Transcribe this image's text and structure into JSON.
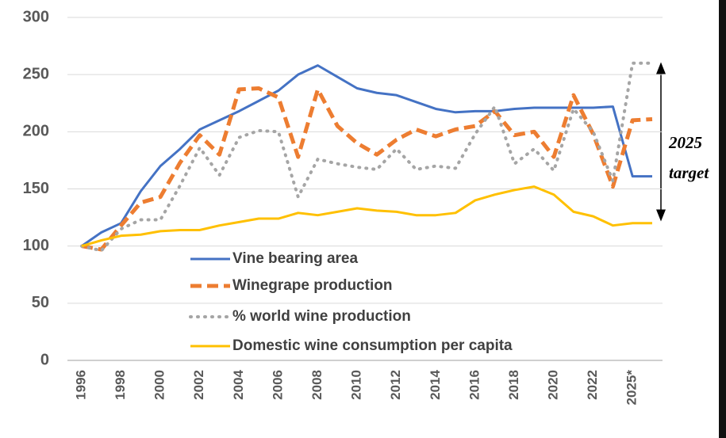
{
  "chart_data": {
    "type": "line",
    "categories": [
      "1996",
      null,
      "1998",
      null,
      "2000",
      null,
      "2002",
      null,
      "2004",
      null,
      "2006",
      null,
      "2008",
      null,
      "2010",
      null,
      "2012",
      null,
      "2014",
      null,
      "2016",
      null,
      "2018",
      null,
      "2020",
      null,
      "2022",
      null,
      "2025*",
      null
    ],
    "series": [
      {
        "name": "Vine bearing area",
        "color": "#4472c4",
        "style": "solid",
        "values": [
          100,
          112,
          120,
          148,
          170,
          185,
          202,
          210,
          218,
          227,
          236,
          250,
          258,
          248,
          238,
          234,
          232,
          226,
          220,
          217,
          218,
          218,
          220,
          221,
          221,
          221,
          221,
          222,
          161,
          161
        ]
      },
      {
        "name": "Winegrape production",
        "color": "#ed7d31",
        "style": "dashed",
        "values": [
          100,
          97,
          118,
          138,
          143,
          173,
          197,
          180,
          237,
          238,
          230,
          178,
          237,
          205,
          190,
          180,
          193,
          202,
          196,
          202,
          205,
          218,
          197,
          200,
          178,
          232,
          198,
          152,
          210,
          211
        ]
      },
      {
        "name": "% world wine production",
        "color": "#a5a5a5",
        "style": "dotted",
        "values": [
          100,
          96,
          115,
          123,
          123,
          153,
          186,
          162,
          195,
          201,
          200,
          143,
          176,
          172,
          169,
          167,
          185,
          167,
          170,
          168,
          198,
          222,
          172,
          185,
          166,
          220,
          200,
          157,
          260,
          260
        ]
      },
      {
        "name": "Domestic wine consumption per capita",
        "color": "#ffc000",
        "style": "solid",
        "values": [
          100,
          105,
          109,
          110,
          113,
          114,
          114,
          118,
          121,
          124,
          124,
          129,
          127,
          130,
          133,
          131,
          130,
          127,
          127,
          129,
          140,
          145,
          149,
          152,
          145,
          130,
          126,
          118,
          120,
          120
        ]
      }
    ],
    "annotation": [
      "2025",
      "target"
    ],
    "ylim": [
      0,
      300
    ],
    "yticks": [
      0,
      50,
      100,
      150,
      200,
      250,
      300
    ],
    "grid": true
  }
}
